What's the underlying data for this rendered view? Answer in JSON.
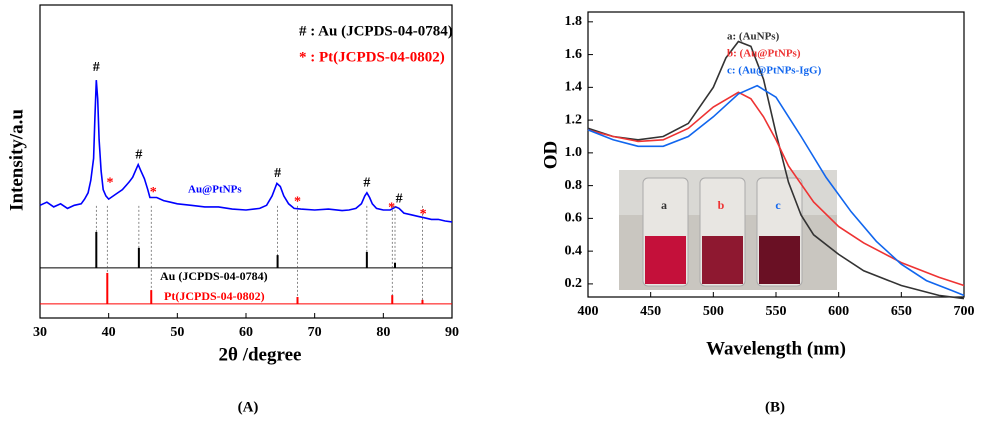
{
  "chart_data": [
    {
      "type": "line",
      "panel_label": "(A)",
      "xlabel": "2θ /degree",
      "ylabel": "Intensity/a.u",
      "xlim": [
        30,
        90
      ],
      "xticks": [
        30,
        40,
        50,
        60,
        70,
        80,
        90
      ],
      "ylim": [
        0,
        100
      ],
      "legend_texts": [
        {
          "text": "# : Au (JCPDS-04-0784)",
          "color": "#000000"
        },
        {
          "text": "* : Pt(JCPDS-04-0802)",
          "color": "#ff0000"
        }
      ],
      "series": [
        {
          "name": "Au@PtNPs",
          "color": "#0000ff",
          "style": "line",
          "x": [
            30,
            31,
            32,
            33,
            34,
            35,
            36,
            36.5,
            37,
            37.4,
            37.8,
            38.0,
            38.2,
            38.4,
            38.6,
            38.9,
            39.2,
            39.6,
            40,
            41,
            42,
            43,
            43.5,
            44,
            44.3,
            44.7,
            45.2,
            45.7,
            46,
            47,
            48,
            49,
            50,
            52,
            54,
            56,
            58,
            60,
            62,
            63,
            63.8,
            64.5,
            65,
            65.5,
            66.2,
            67,
            68,
            70,
            72,
            74,
            75,
            76,
            76.8,
            77.3,
            77.6,
            78,
            78.4,
            79,
            80,
            81,
            81.8,
            82.3,
            83,
            84,
            85,
            86,
            87,
            88,
            89,
            90
          ],
          "values": [
            36,
            37,
            35.5,
            36.5,
            35,
            36,
            36.5,
            38,
            40,
            44,
            51,
            64,
            76,
            70,
            57,
            47,
            41,
            39,
            38,
            39.5,
            41,
            43.5,
            45,
            47.5,
            49,
            47,
            44.5,
            41,
            38.5,
            38.5,
            37.5,
            37,
            36.5,
            36,
            35.5,
            35.5,
            34.8,
            34.5,
            35,
            36,
            39,
            43,
            42,
            39,
            36.5,
            35,
            34.8,
            34.5,
            34.8,
            34.3,
            34.5,
            35,
            36.5,
            39,
            40,
            38.5,
            36.5,
            35,
            34.5,
            34.5,
            35.5,
            35,
            33.5,
            33,
            32.5,
            32,
            31.5,
            31.5,
            31,
            30.7
          ]
        },
        {
          "name": "Au (JCPDS-04-0784)",
          "color": "#000000",
          "style": "stick",
          "baseline": 16,
          "x": [
            38.2,
            44.4,
            64.6,
            77.6,
            81.7
          ],
          "values": [
            27.5,
            22.4,
            20.1,
            21.1,
            17.6
          ]
        },
        {
          "name": "Pt(JCPDS-04-0802)",
          "color": "#ff0000",
          "style": "stick",
          "baseline": 4.5,
          "x": [
            39.8,
            46.2,
            67.5,
            81.3,
            85.7
          ],
          "values": [
            14.4,
            8.9,
            6.7,
            7.3,
            5.8
          ]
        }
      ],
      "annotations": [
        {
          "text": "#",
          "x": 38.2,
          "y": 80,
          "color": "#000000"
        },
        {
          "text": "#",
          "x": 44.4,
          "y": 52,
          "color": "#000000"
        },
        {
          "text": "#",
          "x": 64.6,
          "y": 46,
          "color": "#000000"
        },
        {
          "text": "#",
          "x": 77.6,
          "y": 43,
          "color": "#000000"
        },
        {
          "text": "#",
          "x": 82.3,
          "y": 38,
          "color": "#000000"
        },
        {
          "text": "*",
          "x": 40.2,
          "y": 43,
          "color": "#ff0000"
        },
        {
          "text": "*",
          "x": 46.5,
          "y": 40,
          "color": "#ff0000"
        },
        {
          "text": "*",
          "x": 67.5,
          "y": 37,
          "color": "#ff0000"
        },
        {
          "text": "*",
          "x": 81.2,
          "y": 35,
          "color": "#ff0000"
        },
        {
          "text": "*",
          "x": 85.8,
          "y": 33,
          "color": "#ff0000"
        }
      ]
    },
    {
      "type": "line",
      "panel_label": "(B)",
      "xlabel": "Wavelength (nm)",
      "ylabel": "OD",
      "xlim": [
        400,
        700
      ],
      "xticks": [
        400,
        450,
        500,
        550,
        600,
        650,
        700
      ],
      "ylim": [
        0.12,
        1.86
      ],
      "yticks": [
        0.2,
        0.4,
        0.6,
        0.8,
        {
          "value": 1,
          "label": "1.0"
        },
        1.2,
        1.4,
        1.6,
        1.8
      ],
      "inset_labels": [
        "a",
        "b",
        "c"
      ],
      "series": [
        {
          "name": "a: (AuNPs)",
          "color": "#333333",
          "style": "line",
          "x": [
            400,
            420,
            440,
            460,
            480,
            500,
            510,
            520,
            530,
            540,
            550,
            560,
            570,
            580,
            600,
            620,
            650,
            680,
            700
          ],
          "values": [
            1.15,
            1.1,
            1.08,
            1.1,
            1.18,
            1.4,
            1.58,
            1.68,
            1.65,
            1.45,
            1.12,
            0.82,
            0.62,
            0.5,
            0.38,
            0.28,
            0.19,
            0.13,
            0.11
          ]
        },
        {
          "name": "b: (Au@PtNPs)",
          "color": "#ee3333",
          "style": "line",
          "x": [
            400,
            420,
            440,
            460,
            480,
            500,
            520,
            530,
            540,
            550,
            560,
            580,
            600,
            620,
            650,
            680,
            700
          ],
          "values": [
            1.14,
            1.1,
            1.07,
            1.08,
            1.15,
            1.28,
            1.37,
            1.33,
            1.22,
            1.08,
            0.92,
            0.7,
            0.55,
            0.45,
            0.33,
            0.24,
            0.19
          ]
        },
        {
          "name": "c: (Au@PtNPs-IgG)",
          "color": "#1166ee",
          "style": "line",
          "x": [
            400,
            420,
            440,
            460,
            480,
            500,
            520,
            535,
            550,
            570,
            590,
            610,
            630,
            650,
            670,
            690,
            700
          ],
          "values": [
            1.14,
            1.08,
            1.04,
            1.04,
            1.1,
            1.22,
            1.36,
            1.41,
            1.34,
            1.1,
            0.85,
            0.64,
            0.46,
            0.32,
            0.22,
            0.16,
            0.13
          ]
        }
      ]
    }
  ]
}
